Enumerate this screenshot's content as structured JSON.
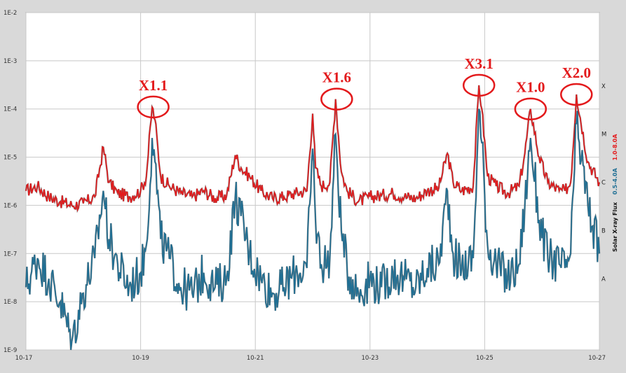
{
  "chart_data": {
    "type": "line",
    "title": "",
    "xlabel": "",
    "ylabel": "Solar X-ray Flux",
    "yscale": "log",
    "ylim": [
      1e-09,
      0.01
    ],
    "xlim": [
      "10-17",
      "10-27"
    ],
    "grid": true,
    "x_ticks": [
      "10-17",
      "10-19",
      "10-21",
      "10-23",
      "10-25",
      "10-27"
    ],
    "y_ticks": [
      "1E-9",
      "1E-8",
      "1E-7",
      "1E-6",
      "1E-5",
      "1E-4",
      "1E-3",
      "1E-2"
    ],
    "class_labels": [
      {
        "label": "A",
        "flux": 3e-08
      },
      {
        "label": "B",
        "flux": 3e-07
      },
      {
        "label": "C",
        "flux": 3e-06
      },
      {
        "label": "M",
        "flux": 3e-05
      },
      {
        "label": "X",
        "flux": 0.0003
      }
    ],
    "series": [
      {
        "name": "1.0-8.0A",
        "color": "#e31a1c",
        "x": [
          17.0,
          17.2,
          17.4,
          17.6,
          17.8,
          18.0,
          18.2,
          18.35,
          18.45,
          18.6,
          18.8,
          19.0,
          19.1,
          19.2,
          19.25,
          19.35,
          19.5,
          19.7,
          19.9,
          20.1,
          20.3,
          20.5,
          20.65,
          20.75,
          20.9,
          21.1,
          21.3,
          21.5,
          21.7,
          21.9,
          22.0,
          22.05,
          22.15,
          22.3,
          22.4,
          22.5,
          22.6,
          22.8,
          23.0,
          23.2,
          23.4,
          23.6,
          23.8,
          24.0,
          24.2,
          24.35,
          24.45,
          24.6,
          24.8,
          24.9,
          24.95,
          25.05,
          25.2,
          25.4,
          25.6,
          25.7,
          25.8,
          25.95,
          26.1,
          26.3,
          26.4,
          26.5,
          26.6,
          26.8,
          27.0
        ],
        "values": [
          2e-06,
          2.5e-06,
          1.5e-06,
          1.2e-06,
          1e-06,
          1.1e-06,
          1.5e-06,
          1.6e-05,
          3e-06,
          1.8e-06,
          1.5e-06,
          2e-06,
          4e-06,
          0.00011,
          6e-05,
          4e-06,
          2.5e-06,
          1.8e-06,
          1.5e-06,
          2e-06,
          1.4e-06,
          1.6e-06,
          1.1e-05,
          6e-06,
          4e-06,
          2e-06,
          1.4e-06,
          1.5e-06,
          1.8e-06,
          2e-06,
          8e-05,
          6e-06,
          2.5e-06,
          3e-06,
          0.00016,
          5e-06,
          2e-06,
          1.2e-06,
          1.5e-06,
          1.6e-06,
          1.8e-06,
          1.5e-06,
          1.4e-06,
          2e-06,
          2.3e-06,
          1.2e-05,
          3e-06,
          2e-06,
          2.5e-06,
          0.00031,
          0.0001,
          4e-06,
          2.5e-06,
          1.8e-06,
          2.5e-06,
          1.2e-05,
          0.0001,
          1e-05,
          3e-06,
          2e-06,
          2e-06,
          3e-06,
          0.0002,
          8e-06,
          3e-06
        ]
      },
      {
        "name": "0.5-4.0A",
        "color": "#1f6f94",
        "x": [
          17.0,
          17.2,
          17.4,
          17.6,
          17.8,
          18.0,
          18.2,
          18.35,
          18.45,
          18.6,
          18.8,
          19.0,
          19.1,
          19.2,
          19.25,
          19.35,
          19.5,
          19.7,
          19.9,
          20.1,
          20.3,
          20.5,
          20.65,
          20.75,
          20.9,
          21.1,
          21.3,
          21.5,
          21.7,
          21.9,
          22.0,
          22.05,
          22.15,
          22.3,
          22.4,
          22.5,
          22.6,
          22.8,
          23.0,
          23.2,
          23.4,
          23.6,
          23.8,
          24.0,
          24.2,
          24.35,
          24.45,
          24.6,
          24.8,
          24.9,
          24.95,
          25.05,
          25.2,
          25.4,
          25.6,
          25.7,
          25.8,
          25.95,
          26.1,
          26.3,
          26.4,
          26.5,
          26.6,
          26.8,
          27.0
        ],
        "values": [
          2e-08,
          8e-08,
          3e-08,
          1e-08,
          1.5e-09,
          1.5e-08,
          8e-08,
          2e-06,
          2e-07,
          6e-08,
          2e-08,
          4e-08,
          1.5e-07,
          2.5e-05,
          8e-06,
          2e-07,
          8e-08,
          2e-08,
          1.5e-08,
          4e-08,
          2e-08,
          3e-08,
          1.5e-06,
          6e-07,
          1e-07,
          3e-08,
          1.5e-08,
          2e-08,
          4e-08,
          5e-08,
          1.5e-05,
          5e-07,
          6e-08,
          8e-08,
          3e-05,
          3e-07,
          5e-08,
          1.5e-08,
          3e-08,
          2e-08,
          4e-08,
          3e-08,
          2e-08,
          5e-08,
          6e-08,
          2e-06,
          1e-07,
          5e-08,
          8e-08,
          0.0001,
          2e-05,
          1.5e-07,
          6e-08,
          3e-08,
          6e-08,
          1e-06,
          2.5e-05,
          5e-07,
          8e-08,
          6e-08,
          5e-08,
          1e-07,
          5e-05,
          1e-06,
          1e-07
        ]
      }
    ],
    "annotations": [
      {
        "text": "X1.1",
        "x": 19.22,
        "flux": 0.00011
      },
      {
        "text": "X1.6",
        "x": 22.42,
        "flux": 0.00016
      },
      {
        "text": "X3.1",
        "x": 24.9,
        "flux": 0.00031
      },
      {
        "text": "X1.0",
        "x": 25.8,
        "flux": 0.0001
      },
      {
        "text": "X2.0",
        "x": 26.6,
        "flux": 0.0002
      }
    ]
  }
}
